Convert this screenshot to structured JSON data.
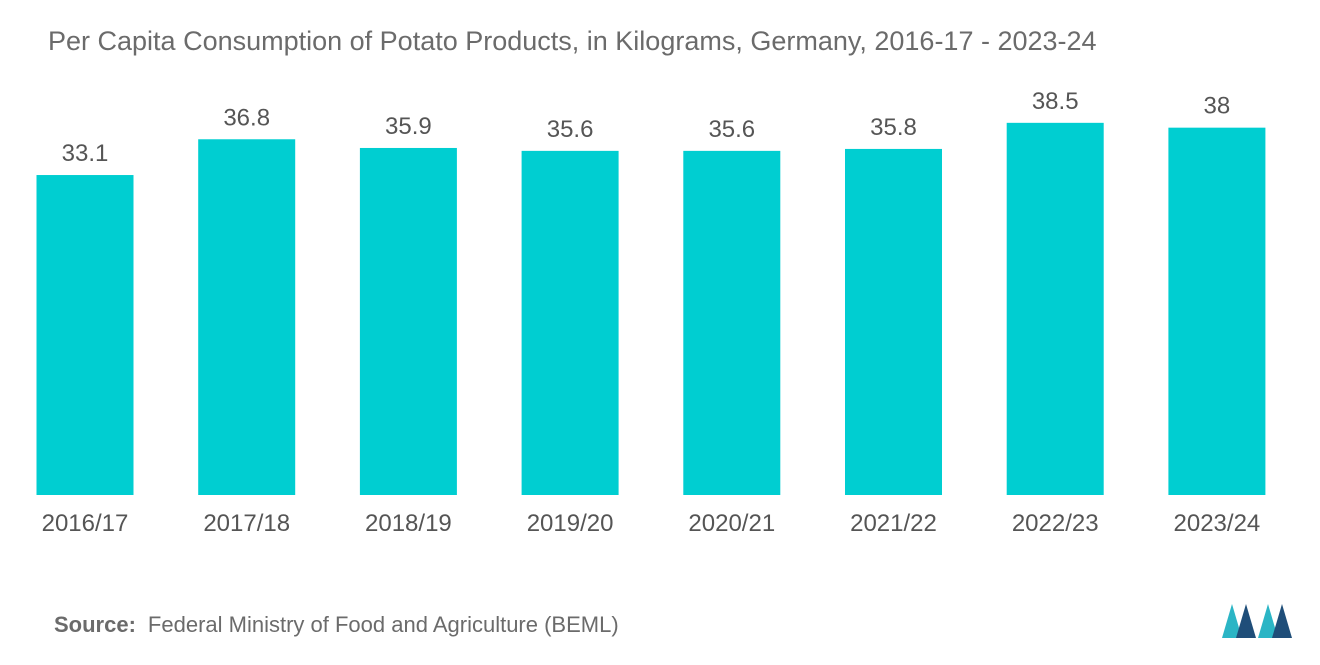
{
  "title": "Per Capita Consumption of Potato Products, in Kilograms, Germany, 2016-17 - 2023-24",
  "source": {
    "label": "Source:",
    "text": "Federal Ministry of Food and Agriculture (BEML)"
  },
  "logo_icon": "mordor-intelligence-logo-icon",
  "colors": {
    "bar": "#00CED1",
    "text": "#555555",
    "logo_dark": "#1f4e79",
    "logo_light": "#2bb5c5"
  },
  "chart_data": {
    "type": "bar",
    "title": "Per Capita Consumption of Potato Products, in Kilograms, Germany, 2016-17 - 2023-24",
    "categories": [
      "2016/17",
      "2017/18",
      "2018/19",
      "2019/20",
      "2020/21",
      "2021/22",
      "2022/23",
      "2023/24"
    ],
    "values": [
      33.1,
      36.8,
      35.9,
      35.6,
      35.6,
      35.8,
      38.5,
      38
    ],
    "value_labels": [
      "33.1",
      "36.8",
      "35.9",
      "35.6",
      "35.6",
      "35.8",
      "38.5",
      "38"
    ],
    "xlabel": "",
    "ylabel": "",
    "ylim": [
      0,
      45
    ],
    "grid": false,
    "legend": "none"
  }
}
